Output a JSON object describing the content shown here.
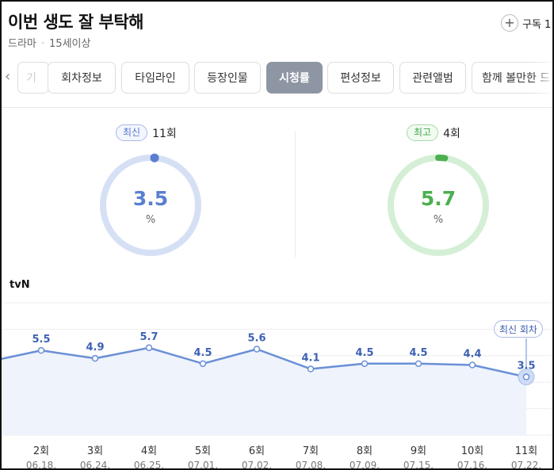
{
  "header": {
    "title": "이번 생도 잘 부탁해",
    "genre": "드라마",
    "rating": "15세이상",
    "subscribe_label": "구독 1"
  },
  "tabs": [
    {
      "label": "기",
      "state": "partial"
    },
    {
      "label": "회차정보",
      "state": "normal"
    },
    {
      "label": "타임라인",
      "state": "normal"
    },
    {
      "label": "등장인물",
      "state": "normal"
    },
    {
      "label": "시청률",
      "state": "active"
    },
    {
      "label": "편성정보",
      "state": "normal"
    },
    {
      "label": "관련앨범",
      "state": "normal"
    },
    {
      "label": "함께 볼만한 드",
      "state": "cut"
    }
  ],
  "gauges": {
    "latest": {
      "badge": "최신",
      "episode": "11회",
      "value": "3.5",
      "unit": "%",
      "color": "#5a7fd1",
      "track": "#d6e0f5"
    },
    "best": {
      "badge": "최고",
      "episode": "4회",
      "value": "5.7",
      "unit": "%",
      "color": "#4caf50",
      "track": "#d4efd5"
    }
  },
  "channel": "tvN",
  "latest_tag": "최신 회차",
  "chart_data": {
    "type": "area",
    "categories": [
      "2회",
      "3회",
      "4회",
      "5회",
      "6회",
      "7회",
      "8회",
      "9회",
      "10회",
      "11회"
    ],
    "dates": [
      "06.18.",
      "06.24.",
      "06.25.",
      "07.01.",
      "07.02.",
      "07.08.",
      "07.09.",
      "07.15.",
      "07.16.",
      "07.22."
    ],
    "values": [
      5.5,
      4.9,
      5.7,
      4.5,
      5.6,
      4.1,
      4.5,
      4.5,
      4.4,
      3.5
    ],
    "ylim": [
      0,
      10
    ],
    "grid": true,
    "line_color": "#6a8fd6",
    "fill_color": "#eef3fc"
  }
}
